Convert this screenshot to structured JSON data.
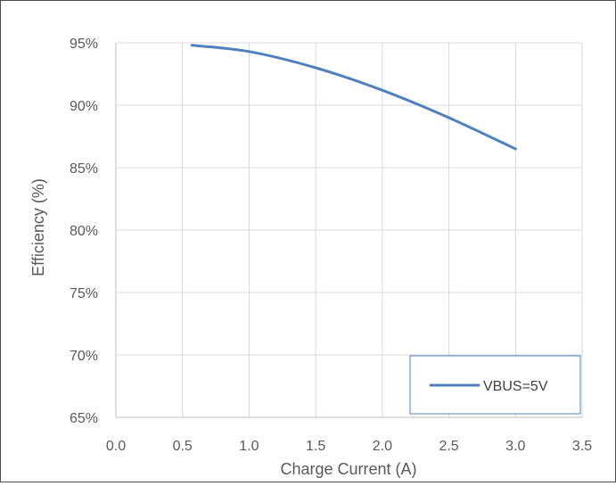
{
  "chart_data": {
    "type": "line",
    "title": "",
    "xlabel": "Charge Current (A)",
    "ylabel": "Efficiency (%)",
    "xlim": [
      0.0,
      3.5
    ],
    "ylim": [
      65,
      95
    ],
    "x_ticks": [
      "0.0",
      "0.5",
      "1.0",
      "1.5",
      "2.0",
      "2.5",
      "3.0",
      "3.5"
    ],
    "y_ticks": [
      "65%",
      "70%",
      "75%",
      "80%",
      "85%",
      "90%",
      "95%"
    ],
    "grid": true,
    "legend_position": "bottom-right",
    "series": [
      {
        "name": "VBUS=5V",
        "color": "#4f81bd",
        "x": [
          0.57,
          1.0,
          1.5,
          2.0,
          2.5,
          3.0
        ],
        "y": [
          94.8,
          94.3,
          93.0,
          91.2,
          89.0,
          86.5
        ]
      }
    ]
  }
}
